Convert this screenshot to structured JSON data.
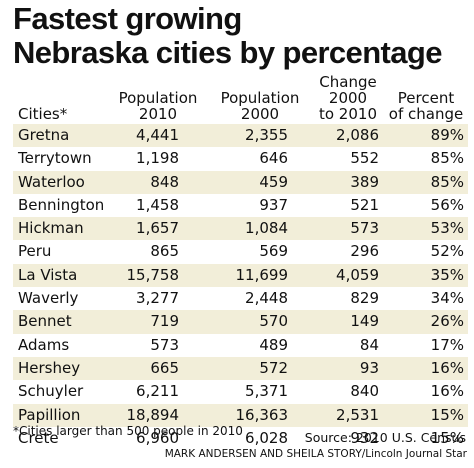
{
  "chart_data": {
    "type": "table",
    "title_lines": [
      "Fastest growing",
      "Nebraska cities by percentage"
    ],
    "columns": [
      {
        "key": "city",
        "label_lines": [
          "Cities*"
        ]
      },
      {
        "key": "pop2010",
        "label_lines": [
          "Population",
          "2010"
        ]
      },
      {
        "key": "pop2000",
        "label_lines": [
          "Population",
          "2000"
        ]
      },
      {
        "key": "change",
        "label_lines": [
          "Change",
          "2000",
          "to 2010"
        ]
      },
      {
        "key": "pct",
        "label_lines": [
          "Percent",
          "of change"
        ]
      }
    ],
    "rows": [
      {
        "city": "Gretna",
        "pop2010": "4,441",
        "pop2000": "2,355",
        "change": "2,086",
        "pct": "89%"
      },
      {
        "city": "Terrytown",
        "pop2010": "1,198",
        "pop2000": "646",
        "change": "552",
        "pct": "85%"
      },
      {
        "city": "Waterloo",
        "pop2010": "848",
        "pop2000": "459",
        "change": "389",
        "pct": "85%"
      },
      {
        "city": "Bennington",
        "pop2010": "1,458",
        "pop2000": "937",
        "change": "521",
        "pct": "56%"
      },
      {
        "city": "Hickman",
        "pop2010": "1,657",
        "pop2000": "1,084",
        "change": "573",
        "pct": "53%"
      },
      {
        "city": "Peru",
        "pop2010": "865",
        "pop2000": "569",
        "change": "296",
        "pct": "52%"
      },
      {
        "city": "La Vista",
        "pop2010": "15,758",
        "pop2000": "11,699",
        "change": "4,059",
        "pct": "35%"
      },
      {
        "city": "Waverly",
        "pop2010": "3,277",
        "pop2000": "2,448",
        "change": "829",
        "pct": "34%"
      },
      {
        "city": "Bennet",
        "pop2010": "719",
        "pop2000": "570",
        "change": "149",
        "pct": "26%"
      },
      {
        "city": "Adams",
        "pop2010": "573",
        "pop2000": "489",
        "change": "84",
        "pct": "17%"
      },
      {
        "city": "Hershey",
        "pop2010": "665",
        "pop2000": "572",
        "change": "93",
        "pct": "16%"
      },
      {
        "city": "Schuyler",
        "pop2010": "6,211",
        "pop2000": "5,371",
        "change": "840",
        "pct": "16%"
      },
      {
        "city": "Papillion",
        "pop2010": "18,894",
        "pop2000": "16,363",
        "change": "2,531",
        "pct": "15%"
      },
      {
        "city": "Crete",
        "pop2010": "6,960",
        "pop2000": "6,028",
        "change": "932",
        "pct": "15%"
      }
    ],
    "footnote": "*Cities larger than 500 people in 2010",
    "source": "Source: 2010 U.S. Census",
    "credit": "MARK ANDERSEN AND SHEILA STORY/Lincoln Journal Star",
    "colors": {
      "row_shade": "#f2eed9",
      "text": "#111111",
      "background": "#ffffff"
    }
  }
}
